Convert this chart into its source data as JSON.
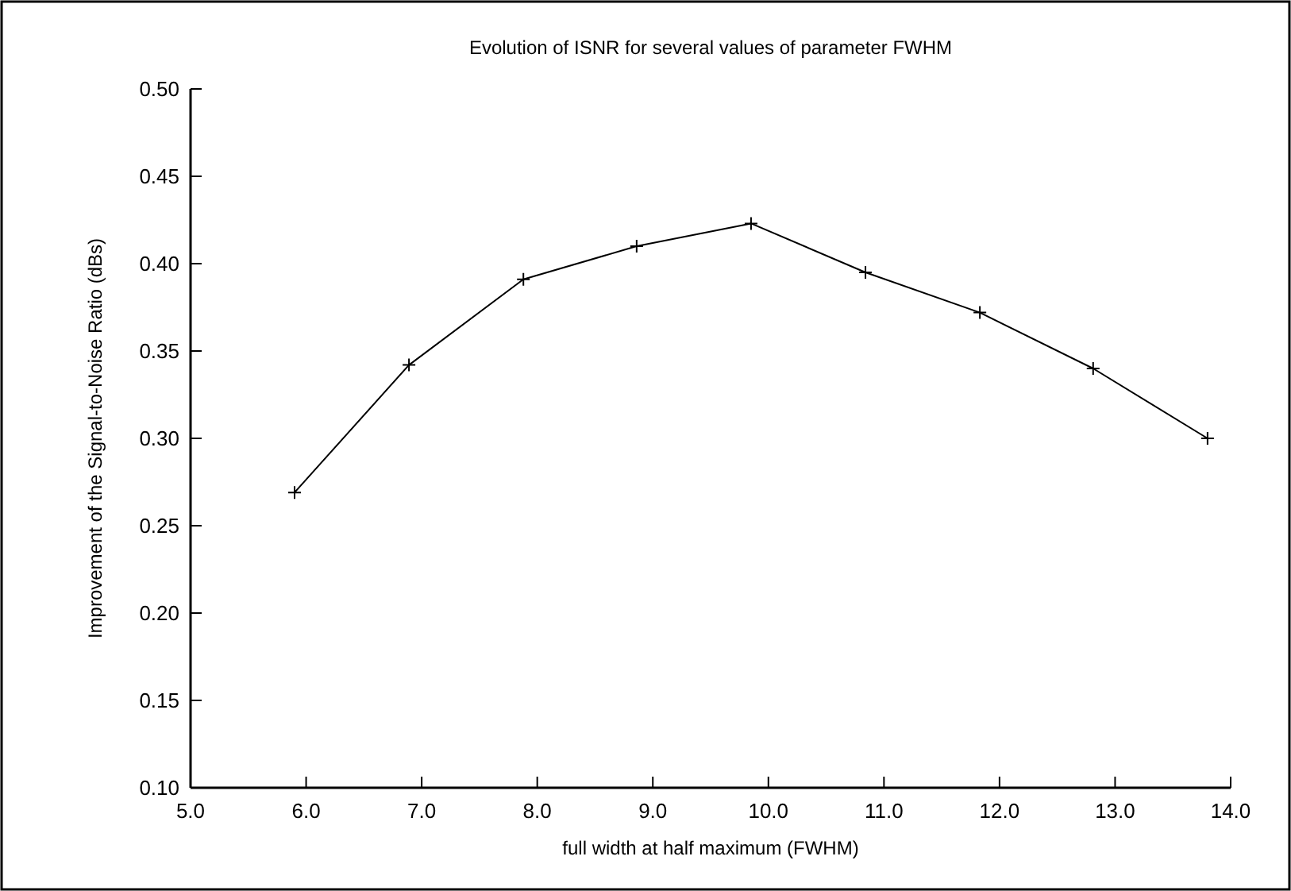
{
  "chart_data": {
    "type": "line",
    "title": "Evolution of ISNR for several values of parameter FWHM",
    "xlabel": "full width at half maximum (FWHM)",
    "ylabel": "Improvement of the Signal-to-Noise Ratio (dBs)",
    "x": [
      5.9,
      6.89,
      7.88,
      8.86,
      9.85,
      10.84,
      11.83,
      12.81,
      13.8
    ],
    "series": [
      {
        "color": "#000000",
        "values": [
          0.269,
          0.342,
          0.391,
          0.41,
          0.423,
          0.395,
          0.372,
          0.34,
          0.3
        ]
      }
    ],
    "xlim": [
      5,
      14
    ],
    "xticks": [
      {
        "value": 5,
        "label": "5.0"
      },
      {
        "value": 6,
        "label": "6.0"
      },
      {
        "value": 7,
        "label": "7.0"
      },
      {
        "value": 8,
        "label": "8.0"
      },
      {
        "value": 9,
        "label": "9.0"
      },
      {
        "value": 10,
        "label": "10.0"
      },
      {
        "value": 11,
        "label": "11.0"
      },
      {
        "value": 12,
        "label": "12.0"
      },
      {
        "value": 13,
        "label": "13.0"
      },
      {
        "value": 14,
        "label": "14.0"
      }
    ],
    "ylim": [
      0.1,
      0.5
    ],
    "yticks": [
      {
        "value": 0.1,
        "label": "0.10"
      },
      {
        "value": 0.15,
        "label": "0.15"
      },
      {
        "value": 0.2,
        "label": "0.20"
      },
      {
        "value": 0.25,
        "label": "0.25"
      },
      {
        "value": 0.3,
        "label": "0.30"
      },
      {
        "value": 0.35,
        "label": "0.35"
      },
      {
        "value": 0.4,
        "label": "0.40"
      },
      {
        "value": 0.45,
        "label": "0.45"
      },
      {
        "value": 0.5,
        "label": "0.50"
      }
    ],
    "marker": "cross",
    "line_style": "solid",
    "grid": false
  }
}
